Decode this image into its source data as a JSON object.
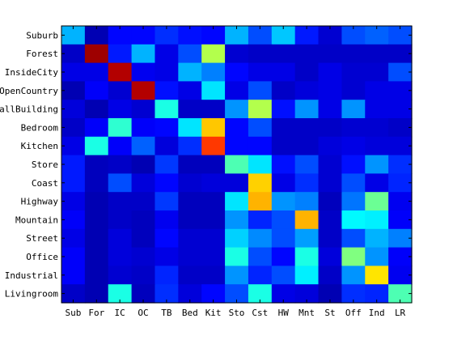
{
  "chart_data": {
    "type": "heatmap",
    "colormap": "jet",
    "value_range": [
      0,
      1
    ],
    "grid": false,
    "legend": "none",
    "x_tick_labels": [
      "Sub",
      "For",
      "IC",
      "OC",
      "TB",
      "Bed",
      "Kit",
      "Sto",
      "Cst",
      "HW",
      "Mnt",
      "St",
      "Off",
      "Ind",
      "LR"
    ],
    "y_tick_labels": [
      "Suburb",
      "Forest",
      "InsideCity",
      "OpenCountry",
      "TallBuilding",
      "Bedroom",
      "Kitchen",
      "Store",
      "Coast",
      "Highway",
      "Mountain",
      "Street",
      "Office",
      "Industrial",
      "Livingroom"
    ],
    "values": [
      [
        0.3,
        0.05,
        0.13,
        0.13,
        0.17,
        0.14,
        0.13,
        0.3,
        0.2,
        0.32,
        0.15,
        0.08,
        0.2,
        0.22,
        0.2
      ],
      [
        0.07,
        0.97,
        0.15,
        0.3,
        0.1,
        0.2,
        0.55,
        0.08,
        0.07,
        0.07,
        0.07,
        0.07,
        0.07,
        0.07,
        0.07
      ],
      [
        0.1,
        0.1,
        0.95,
        0.11,
        0.1,
        0.3,
        0.25,
        0.13,
        0.1,
        0.1,
        0.07,
        0.1,
        0.08,
        0.08,
        0.2
      ],
      [
        0.05,
        0.12,
        0.08,
        0.95,
        0.14,
        0.1,
        0.35,
        0.1,
        0.2,
        0.07,
        0.09,
        0.1,
        0.08,
        0.1,
        0.1
      ],
      [
        0.09,
        0.05,
        0.1,
        0.08,
        0.4,
        0.07,
        0.07,
        0.27,
        0.55,
        0.14,
        0.27,
        0.1,
        0.27,
        0.1,
        0.1
      ],
      [
        0.07,
        0.12,
        0.42,
        0.12,
        0.13,
        0.35,
        0.68,
        0.13,
        0.2,
        0.07,
        0.07,
        0.07,
        0.08,
        0.08,
        0.07
      ],
      [
        0.1,
        0.4,
        0.12,
        0.22,
        0.09,
        0.17,
        0.82,
        0.13,
        0.13,
        0.07,
        0.07,
        0.09,
        0.1,
        0.09,
        0.09
      ],
      [
        0.15,
        0.06,
        0.07,
        0.05,
        0.18,
        0.06,
        0.06,
        0.45,
        0.35,
        0.14,
        0.2,
        0.08,
        0.14,
        0.27,
        0.17
      ],
      [
        0.15,
        0.06,
        0.2,
        0.09,
        0.13,
        0.08,
        0.09,
        0.09,
        0.67,
        0.1,
        0.17,
        0.08,
        0.2,
        0.1,
        0.16
      ],
      [
        0.1,
        0.05,
        0.07,
        0.07,
        0.18,
        0.06,
        0.06,
        0.35,
        0.7,
        0.27,
        0.25,
        0.06,
        0.24,
        0.48,
        0.11
      ],
      [
        0.12,
        0.05,
        0.07,
        0.06,
        0.11,
        0.06,
        0.06,
        0.27,
        0.16,
        0.2,
        0.7,
        0.07,
        0.37,
        0.36,
        0.12
      ],
      [
        0.1,
        0.05,
        0.09,
        0.06,
        0.13,
        0.08,
        0.08,
        0.33,
        0.26,
        0.2,
        0.28,
        0.07,
        0.2,
        0.3,
        0.25
      ],
      [
        0.12,
        0.05,
        0.09,
        0.08,
        0.1,
        0.08,
        0.08,
        0.4,
        0.2,
        0.13,
        0.4,
        0.09,
        0.5,
        0.27,
        0.12
      ],
      [
        0.12,
        0.05,
        0.08,
        0.07,
        0.16,
        0.07,
        0.07,
        0.27,
        0.16,
        0.2,
        0.36,
        0.07,
        0.27,
        0.65,
        0.11
      ],
      [
        0.07,
        0.05,
        0.4,
        0.06,
        0.17,
        0.09,
        0.13,
        0.2,
        0.4,
        0.1,
        0.09,
        0.05,
        0.17,
        0.16,
        0.45
      ]
    ]
  }
}
